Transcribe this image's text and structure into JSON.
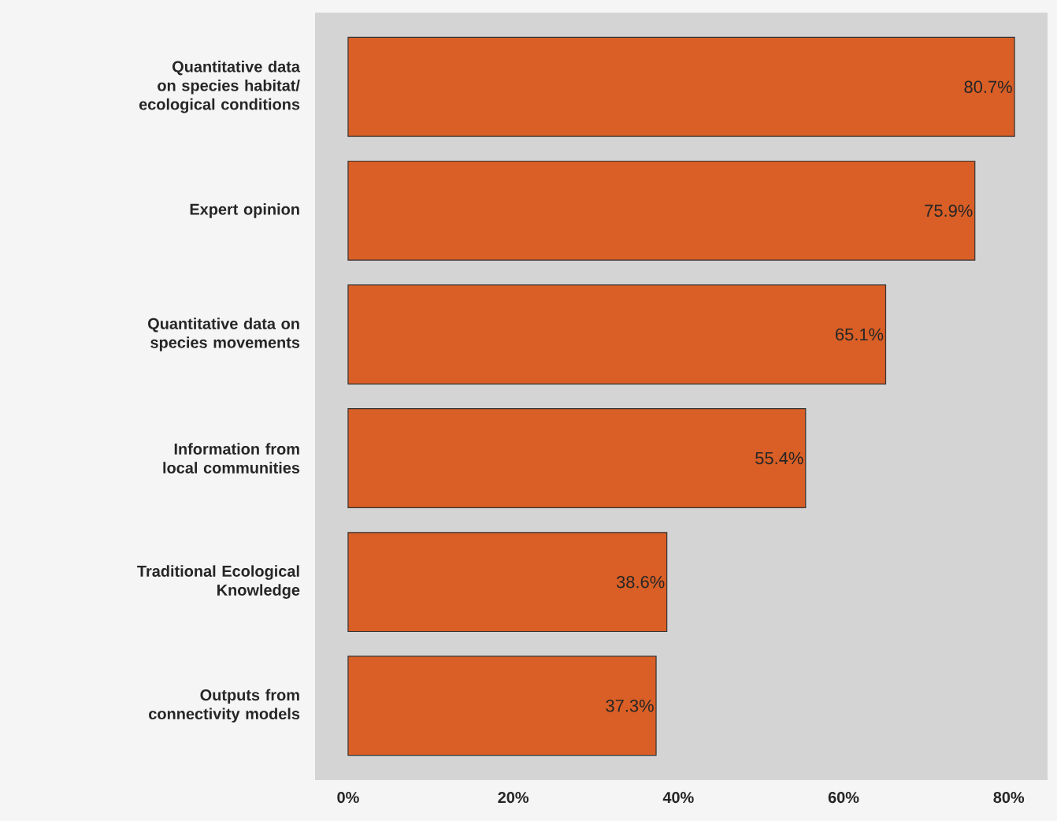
{
  "chart_data": {
    "type": "bar",
    "orientation": "horizontal",
    "categories": [
      "Quantitative data on species habitat/ ecological conditions",
      "Expert opinion",
      "Quantitative data on species movements",
      "Information from local communities",
      "Traditional Ecological Knowledge",
      "Outputs from connectivity models"
    ],
    "values": [
      80.7,
      75.9,
      65.1,
      55.4,
      38.6,
      37.3
    ],
    "value_labels": [
      "80.7%",
      "75.9%",
      "65.1%",
      "55.4%",
      "38.6%",
      "37.3%"
    ],
    "color": "#d95f26",
    "xlim": [
      -4.0,
      84.7
    ],
    "xticks": [
      {
        "value": 0,
        "label": "0%"
      },
      {
        "value": 20,
        "label": "20%"
      },
      {
        "value": 40,
        "label": "40%"
      },
      {
        "value": 60,
        "label": "60%"
      },
      {
        "value": 80,
        "label": "80%"
      }
    ]
  }
}
